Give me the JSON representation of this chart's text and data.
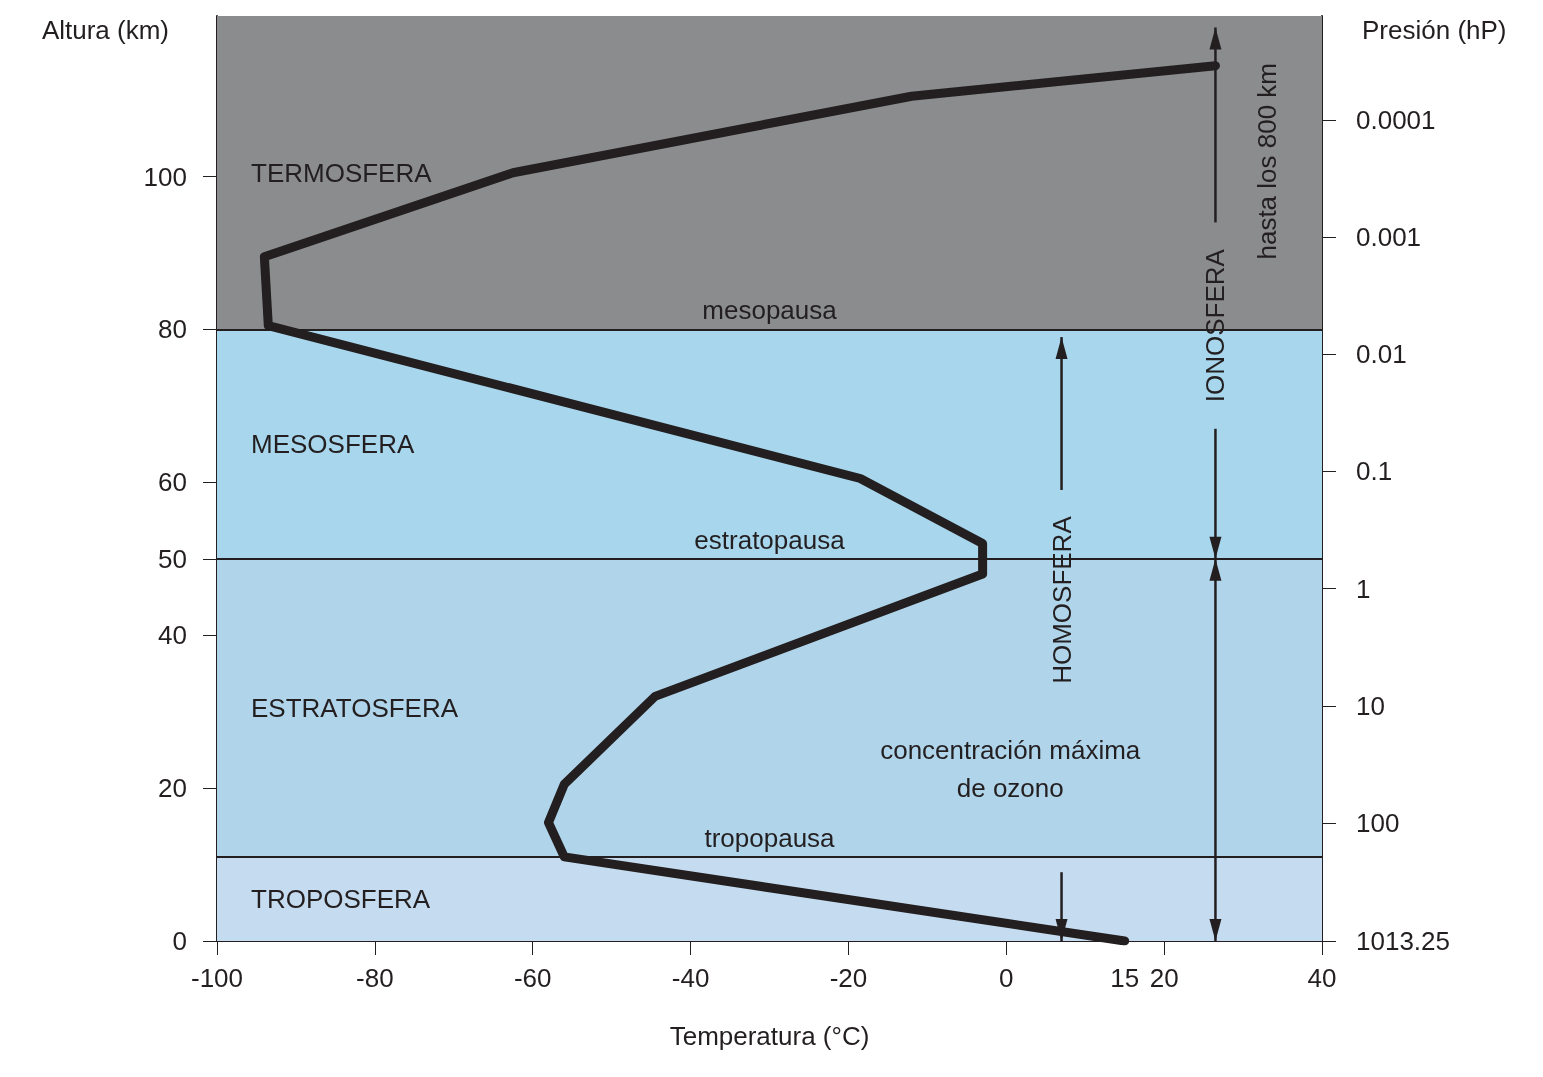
{
  "chart_data": {
    "type": "line",
    "xlabel": "Temperatura (°C)",
    "ylabel": "Altura (km)",
    "y2label": "Presión (hP)",
    "x": [
      15,
      -56,
      -58,
      -56,
      -44.5,
      -3,
      -3,
      -18.5,
      -93.5,
      -94,
      -62.5,
      -12,
      26.5
    ],
    "values": [
      0,
      11,
      15.5,
      20.5,
      32,
      48,
      52,
      60.5,
      80.5,
      89.5,
      100.5,
      110.5,
      114.5
    ],
    "color": "#231f20",
    "line_style": "solid",
    "xlim": [
      -100,
      40
    ],
    "xticks": [
      -100,
      -80,
      -60,
      -40,
      -20,
      0,
      15,
      20,
      40
    ],
    "ylim": [
      0,
      121
    ],
    "yticks": [
      0,
      20,
      40,
      50,
      60,
      80,
      100
    ],
    "y2lim": [
      1013.25,
      1.3e-05
    ],
    "y2ticks": [
      1013.25,
      100,
      10,
      1,
      0.1,
      0.01,
      0.001,
      0.0001
    ],
    "log": "y2",
    "bands": [
      {
        "axis": "y",
        "from": 0,
        "to": 11,
        "label": "TROPOSFERA",
        "color": "#c5dcf0"
      },
      {
        "axis": "y",
        "from": 11,
        "to": 50,
        "label": "ESTRATOSFERA",
        "color": "#b0d5eb"
      },
      {
        "axis": "y",
        "from": 50,
        "to": 80,
        "label": "MESOSFERA",
        "color": "#a8d6ec"
      },
      {
        "axis": "y",
        "from": 80,
        "to": 121,
        "label": "TERMOSFERA",
        "color": "#8b8c8e"
      }
    ],
    "ref_lines": [
      {
        "axis": "y",
        "value": 80,
        "label": "mesopausa",
        "color": "#231f20"
      },
      {
        "axis": "y",
        "value": 50,
        "label": "estratopausa",
        "color": "#231f20"
      },
      {
        "axis": "y",
        "value": 11,
        "label": "tropopausa",
        "color": "#231f20"
      }
    ],
    "annotations": [
      {
        "text": "IONOSFERA",
        "x": 26.5,
        "y": 80.5
      },
      "hasta los 800 km",
      "HOMOSFERA",
      "concentración máxima\nde ozono"
    ]
  }
}
